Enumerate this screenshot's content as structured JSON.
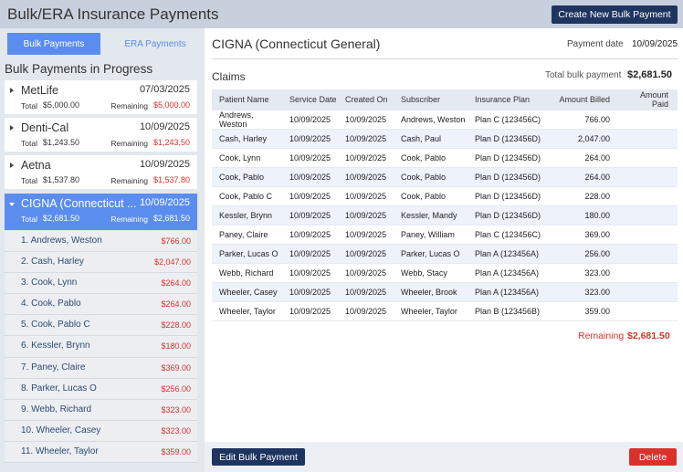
{
  "header": {
    "title": "Bulk/ERA Insurance Payments",
    "create_button": "Create New Bulk Payment"
  },
  "sidebar": {
    "tabs": [
      "Bulk Payments",
      "ERA Payments"
    ],
    "heading": "Bulk Payments in Progress",
    "payments": [
      {
        "name": "MetLife",
        "date": "07/03/2025",
        "total_label": "Total",
        "total": "$5,000.00",
        "remaining_label": "Remaining",
        "remaining": "$5,000.00"
      },
      {
        "name": "Denti-Cal",
        "date": "10/09/2025",
        "total_label": "Total",
        "total": "$1,243.50",
        "remaining_label": "Remaining",
        "remaining": "$1,243.50"
      },
      {
        "name": "Aetna",
        "date": "10/09/2025",
        "total_label": "Total",
        "total": "$1,537.80",
        "remaining_label": "Remaining",
        "remaining": "$1,537.80"
      },
      {
        "name": "CIGNA (Connecticut ...",
        "date": "10/09/2025",
        "total_label": "Total",
        "total": "$2,681.50",
        "remaining_label": "Remaining",
        "remaining": "$2,681.50"
      }
    ],
    "claims_list": [
      {
        "label": "1. Andrews, Weston",
        "amount": "$766.00"
      },
      {
        "label": "2. Cash, Harley",
        "amount": "$2,047.00"
      },
      {
        "label": "3. Cook, Lynn",
        "amount": "$264.00"
      },
      {
        "label": "4. Cook, Pablo",
        "amount": "$264.00"
      },
      {
        "label": "5. Cook, Pablo C",
        "amount": "$228.00"
      },
      {
        "label": "6. Kessler, Brynn",
        "amount": "$180.00"
      },
      {
        "label": "7. Paney, Claire",
        "amount": "$369.00"
      },
      {
        "label": "8. Parker, Lucas O",
        "amount": "$256.00"
      },
      {
        "label": "9. Webb, Richard",
        "amount": "$323.00"
      },
      {
        "label": "10. Wheeler, Casey",
        "amount": "$323.00"
      },
      {
        "label": "11. Wheeler, Taylor",
        "amount": "$359.00"
      }
    ]
  },
  "detail": {
    "title": "CIGNA (Connecticut General)",
    "payment_date_label": "Payment date",
    "payment_date": "10/09/2025",
    "claims_title": "Claims",
    "total_label": "Total bulk payment",
    "total": "$2,681.50",
    "table": {
      "columns": [
        "Patient Name",
        "Service Date",
        "Created On",
        "Subscriber",
        "Insurance Plan",
        "Amount Billed",
        "Amount Paid"
      ],
      "rows": [
        [
          "Andrews, Weston",
          "10/09/2025",
          "10/09/2025",
          "Andrews, Weston",
          "Plan C (123456C)",
          "766.00"
        ],
        [
          "Cash, Harley",
          "10/09/2025",
          "10/09/2025",
          "Cash, Paul",
          "Plan D (123456D)",
          "2,047.00"
        ],
        [
          "Cook, Lynn",
          "10/09/2025",
          "10/09/2025",
          "Cook, Pablo",
          "Plan D (123456D)",
          "264.00"
        ],
        [
          "Cook, Pablo",
          "10/09/2025",
          "10/09/2025",
          "Cook, Pablo",
          "Plan D (123456D)",
          "264.00"
        ],
        [
          "Cook, Pablo C",
          "10/09/2025",
          "10/09/2025",
          "Cook, Pablo",
          "Plan D (123456D)",
          "228.00"
        ],
        [
          "Kessler, Brynn",
          "10/09/2025",
          "10/09/2025",
          "Kessler, Mandy",
          "Plan D (123456D)",
          "180.00"
        ],
        [
          "Paney, Claire",
          "10/09/2025",
          "10/09/2025",
          "Paney, William",
          "Plan C (123456C)",
          "369.00"
        ],
        [
          "Parker, Lucas O",
          "10/09/2025",
          "10/09/2025",
          "Parker, Lucas O",
          "Plan A (123456A)",
          "256.00"
        ],
        [
          "Webb, Richard",
          "10/09/2025",
          "10/09/2025",
          "Webb, Stacy",
          "Plan A (123456A)",
          "323.00"
        ],
        [
          "Wheeler, Casey",
          "10/09/2025",
          "10/09/2025",
          "Wheeler, Brook",
          "Plan A (123456A)",
          "323.00"
        ],
        [
          "Wheeler, Taylor",
          "10/09/2025",
          "10/09/2025",
          "Wheeler, Taylor",
          "Plan B (123456B)",
          "359.00"
        ]
      ]
    },
    "remaining_label": "Remaining",
    "remaining": "$2,681.50"
  },
  "footer": {
    "edit_button": "Edit Bulk Payment",
    "delete_button": "Delete"
  }
}
